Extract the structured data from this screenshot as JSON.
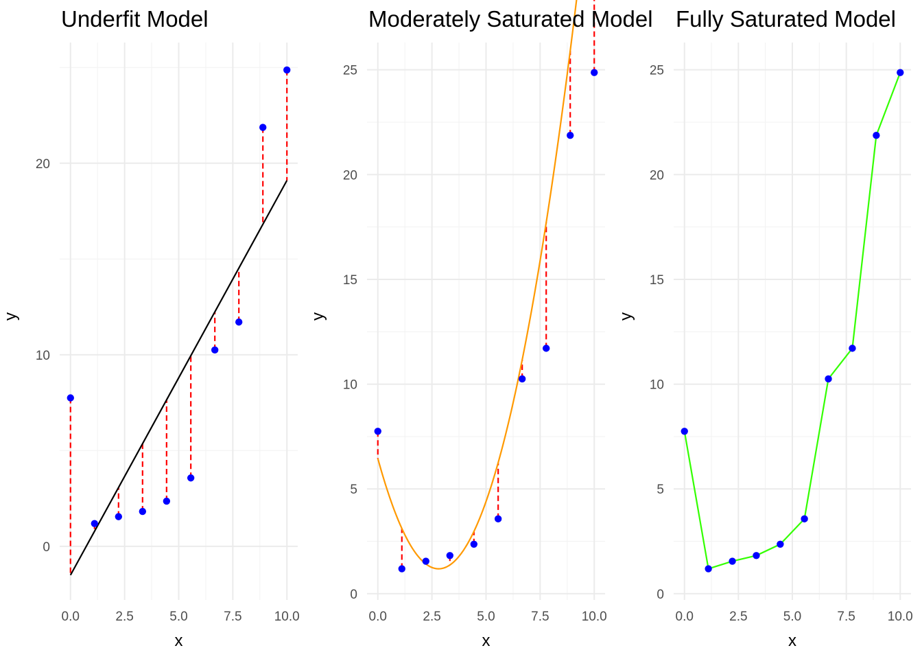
{
  "chart_data": [
    {
      "type": "scatter",
      "title": "Underfit Model",
      "xlabel": "x",
      "ylabel": "y",
      "xlim": [
        -0.5,
        10.5
      ],
      "ylim": [
        -2.8,
        26.3
      ],
      "xticks": [
        0,
        2.5,
        5,
        7.5,
        10
      ],
      "xtick_labels": [
        "0.0",
        "2.5",
        "5.0",
        "7.5",
        "10.0"
      ],
      "yticks": [
        0,
        10,
        20
      ],
      "ytick_labels": [
        "0",
        "10",
        "20"
      ],
      "grid": true,
      "points_x": [
        0.0,
        1.11,
        2.22,
        3.33,
        4.44,
        5.56,
        6.67,
        7.78,
        8.89,
        10.0
      ],
      "points_y": [
        7.75,
        1.19,
        1.55,
        1.82,
        2.36,
        3.57,
        10.25,
        11.71,
        21.87,
        24.87
      ],
      "fit_x": [
        0.0,
        10.0
      ],
      "fit_y": [
        -1.5,
        19.1
      ],
      "fit_type": "linear",
      "fit_color": "#000000",
      "residuals": true
    },
    {
      "type": "scatter",
      "title": "Moderately Saturated Model",
      "xlabel": "x",
      "ylabel": "y",
      "xlim": [
        -0.5,
        10.5
      ],
      "ylim": [
        -0.3,
        26.3
      ],
      "xticks": [
        0,
        2.5,
        5,
        7.5,
        10
      ],
      "xtick_labels": [
        "0.0",
        "2.5",
        "5.0",
        "7.5",
        "10.0"
      ],
      "yticks": [
        0,
        5,
        10,
        15,
        20,
        25
      ],
      "ytick_labels": [
        "0",
        "5",
        "10",
        "15",
        "20",
        "25"
      ],
      "grid": true,
      "points_x": [
        0.0,
        1.11,
        2.22,
        3.33,
        4.44,
        5.56,
        6.67,
        7.78,
        8.89,
        10.0
      ],
      "points_y": [
        7.75,
        1.19,
        1.55,
        1.82,
        2.36,
        3.57,
        10.25,
        11.71,
        21.87,
        24.87
      ],
      "fit_type": "quadratic",
      "fit_coefficients": [
        6.45,
        -3.75,
        0.668
      ],
      "fit_color": "#ff9900",
      "residuals": true
    },
    {
      "type": "line",
      "title": "Fully Saturated Model",
      "xlabel": "x",
      "ylabel": "y",
      "xlim": [
        -0.5,
        10.5
      ],
      "ylim": [
        -0.3,
        26.3
      ],
      "xticks": [
        0,
        2.5,
        5,
        7.5,
        10
      ],
      "xtick_labels": [
        "0.0",
        "2.5",
        "5.0",
        "7.5",
        "10.0"
      ],
      "yticks": [
        0,
        5,
        10,
        15,
        20,
        25
      ],
      "ytick_labels": [
        "0",
        "5",
        "10",
        "15",
        "20",
        "25"
      ],
      "grid": true,
      "points_x": [
        0.0,
        1.11,
        2.22,
        3.33,
        4.44,
        5.56,
        6.67,
        7.78,
        8.89,
        10.0
      ],
      "points_y": [
        7.75,
        1.19,
        1.55,
        1.82,
        2.36,
        3.57,
        10.25,
        11.71,
        21.87,
        24.87
      ],
      "fit_type": "interpolating",
      "fit_color": "#33ff00",
      "residuals": false
    }
  ],
  "colors": {
    "point": "#0000ff",
    "residual": "#ff0000",
    "grid_major": "#ebebeb",
    "grid_minor": "#f3f3f3",
    "axis_text": "#4d4d4d",
    "title_text": "#000000"
  }
}
